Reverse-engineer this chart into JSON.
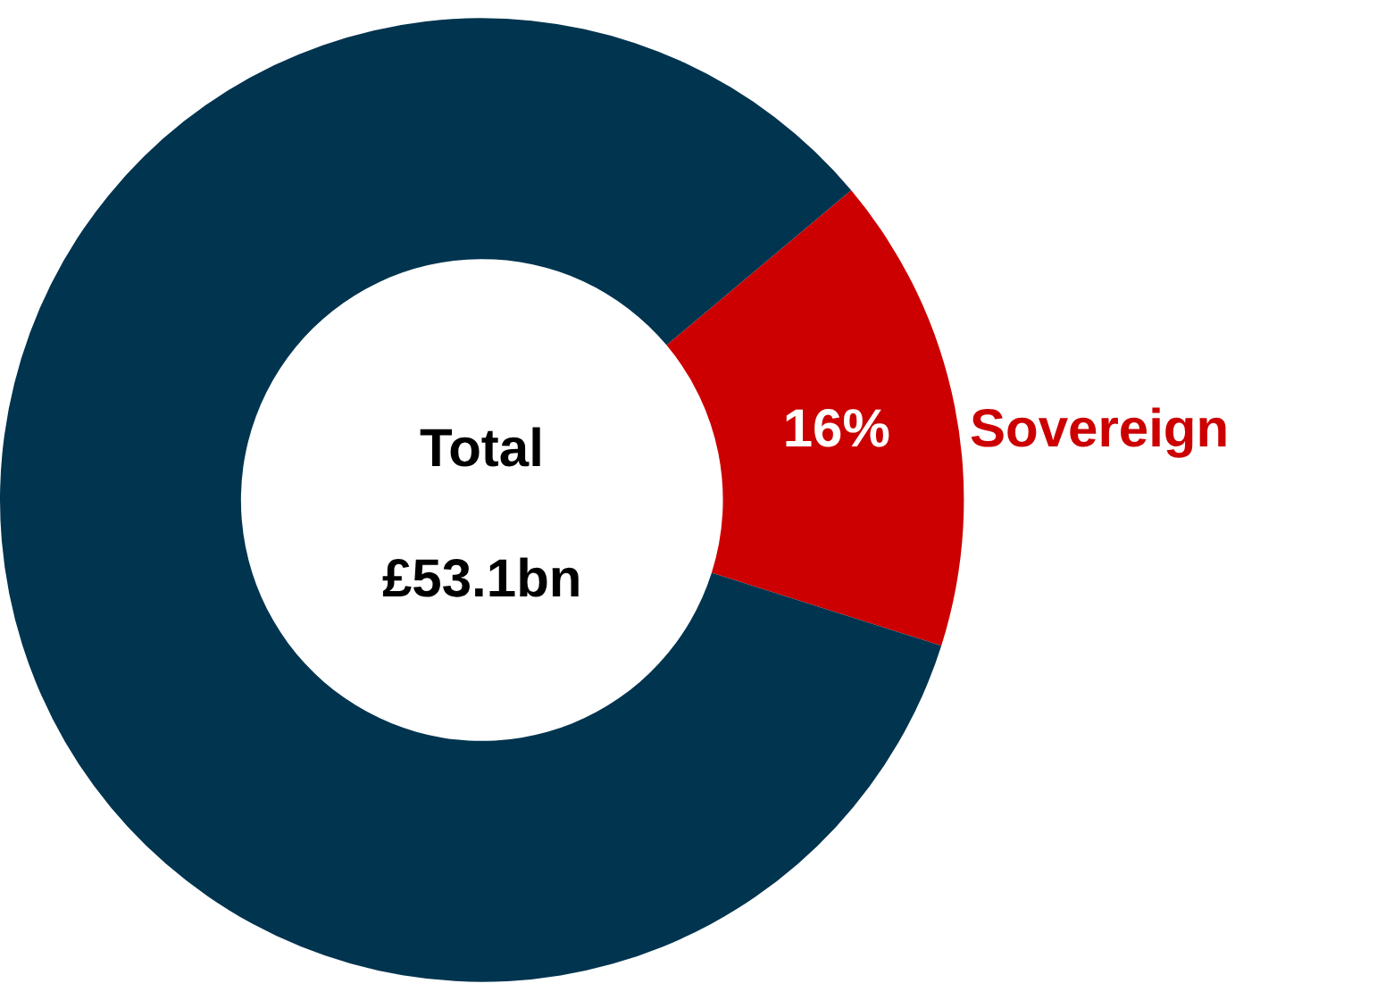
{
  "chart_data": {
    "type": "donut",
    "categories": [
      "Sovereign",
      null
    ],
    "values": [
      16,
      84
    ],
    "colors": [
      "#cc0000",
      "#00344f"
    ],
    "value_labels": [
      "16%",
      null
    ],
    "annotations": [
      "Total",
      "£53.1bn"
    ],
    "legend": false
  }
}
